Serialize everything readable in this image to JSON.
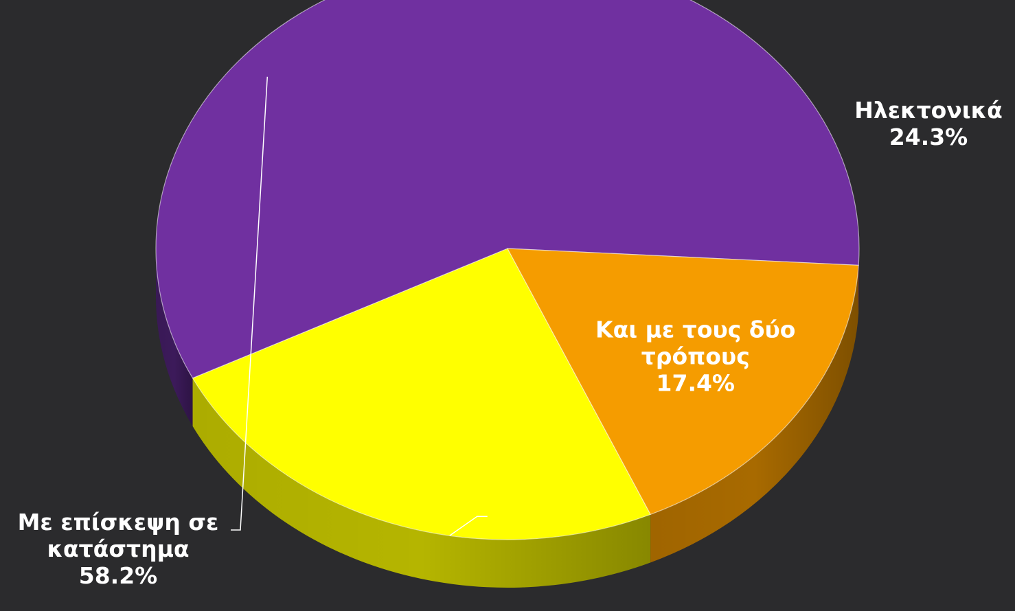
{
  "chart_data": {
    "type": "pie",
    "style": "3d-tilted",
    "start_angle_deg": 66,
    "slices": [
      {
        "name": "Ηλεκτονικά",
        "value": 24.3,
        "pct_label": "24.3%",
        "label_lines": [
          "Ηλεκτονικά",
          "24.3%"
        ],
        "color": "#ffff00",
        "side_color": "#b5b500",
        "label_placement": "outside-right-with-leader"
      },
      {
        "name": "Με επίσκεψη σε κατάστημα",
        "value": 58.2,
        "pct_label": "58.2%",
        "label_lines": [
          "Με επίσκεψη σε",
          "κατάστημα",
          "58.2%"
        ],
        "color": "#7030a0",
        "side_color": "#3c1a5a",
        "label_placement": "outside-bottom-left-with-leader"
      },
      {
        "name": "Και με τους δύο τρόπους",
        "value": 17.4,
        "pct_label": "17.4%",
        "label_lines": [
          "Και με τους δύο",
          "τρόπους",
          "17.4%"
        ],
        "color": "#f59c00",
        "side_color": "#a86a00",
        "label_placement": "inside"
      }
    ],
    "background": "#2b2b2d",
    "label_color": "#ffffff",
    "legend": "none"
  }
}
